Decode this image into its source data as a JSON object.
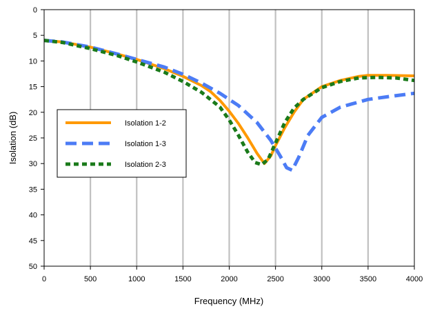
{
  "chart_data": {
    "type": "line",
    "title": "",
    "xlabel": "Frequency (MHz)",
    "ylabel": "Isolation (dB)",
    "xlim": [
      0,
      4000
    ],
    "ylim": [
      0,
      50
    ],
    "y_inverted": true,
    "grid": "vertical",
    "x_ticks": [
      0,
      500,
      1000,
      1500,
      2000,
      2500,
      3000,
      3500,
      4000
    ],
    "y_ticks": [
      0,
      5,
      10,
      15,
      20,
      25,
      30,
      35,
      40,
      45,
      50
    ],
    "legend_position": "left",
    "series": [
      {
        "name": "Isolation 1-2",
        "color": "#FF9900",
        "style": "solid",
        "x": [
          0,
          200,
          500,
          800,
          1000,
          1300,
          1500,
          1700,
          1800,
          1900,
          2000,
          2100,
          2200,
          2300,
          2380,
          2450,
          2500,
          2600,
          2700,
          2800,
          3000,
          3200,
          3400,
          3500,
          3700,
          4000
        ],
        "y": [
          6,
          6.3,
          7.3,
          8.7,
          9.7,
          11.5,
          13,
          14.8,
          16,
          17.7,
          19.8,
          22.2,
          25,
          28,
          30,
          28.5,
          26.5,
          23,
          20,
          17.5,
          15,
          13.8,
          13,
          12.8,
          12.8,
          12.9
        ]
      },
      {
        "name": "Isolation 1-3",
        "color": "#4C7CF5",
        "style": "dashed",
        "x": [
          0,
          200,
          500,
          800,
          1000,
          1300,
          1500,
          1700,
          1900,
          2100,
          2300,
          2450,
          2550,
          2620,
          2680,
          2750,
          2850,
          3000,
          3200,
          3500,
          3700,
          4000
        ],
        "y": [
          6,
          6.3,
          7.3,
          8.7,
          9.7,
          11.2,
          12.6,
          14.3,
          16.3,
          18.7,
          22,
          25.5,
          28.5,
          30.8,
          31.3,
          28.8,
          24.5,
          21,
          19,
          17.5,
          17,
          16.3
        ]
      },
      {
        "name": "Isolation 2-3",
        "color": "#1A7A1A",
        "style": "dotted",
        "x": [
          0,
          200,
          500,
          800,
          1000,
          1300,
          1500,
          1700,
          1900,
          2000,
          2100,
          2200,
          2280,
          2350,
          2420,
          2500,
          2600,
          2700,
          2800,
          3000,
          3200,
          3400,
          3600,
          3800,
          4000
        ],
        "y": [
          6,
          6.4,
          7.6,
          9,
          10.2,
          12.2,
          14,
          16.1,
          19,
          21.5,
          24.5,
          27.8,
          29.8,
          30.2,
          29.2,
          26,
          22,
          19.2,
          17.5,
          15.2,
          14,
          13.3,
          13.2,
          13.3,
          13.8
        ]
      }
    ]
  }
}
